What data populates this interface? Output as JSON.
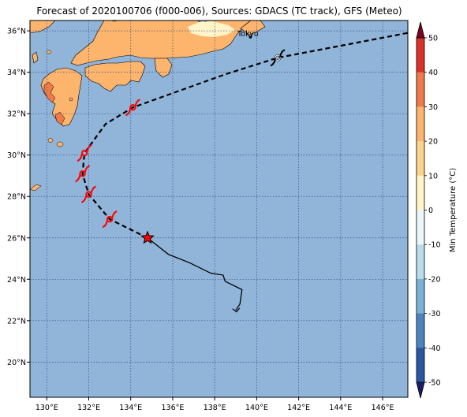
{
  "title": "Forecast of 2020100706 (f000-006), Sources: GDACS (TC track), GFS (Meteo)",
  "map": {
    "lon_range": [
      129.2,
      147.2
    ],
    "lat_range": [
      18.3,
      36.5
    ],
    "lon_ticks": [
      {
        "value": 130,
        "label": "130°E"
      },
      {
        "value": 132,
        "label": "132°E"
      },
      {
        "value": 134,
        "label": "134°E"
      },
      {
        "value": 136,
        "label": "136°E"
      },
      {
        "value": 138,
        "label": "138°E"
      },
      {
        "value": 140,
        "label": "140°E"
      },
      {
        "value": 142,
        "label": "142°E"
      },
      {
        "value": 144,
        "label": "144°E"
      },
      {
        "value": 146,
        "label": "146°E"
      }
    ],
    "lat_ticks": [
      {
        "value": 20,
        "label": "20°N"
      },
      {
        "value": 22,
        "label": "22°N"
      },
      {
        "value": 24,
        "label": "24°N"
      },
      {
        "value": 26,
        "label": "26°N"
      },
      {
        "value": 28,
        "label": "28°N"
      },
      {
        "value": 30,
        "label": "30°N"
      },
      {
        "value": 32,
        "label": "32°N"
      },
      {
        "value": 34,
        "label": "34°N"
      },
      {
        "value": 36,
        "label": "36°N"
      }
    ],
    "city_label": "Tokyo",
    "city": {
      "lon": 139.7,
      "lat": 35.7
    },
    "colors": {
      "ocean": "#91b4d9",
      "land": "#fdb46d",
      "cold_land": "#fff5c9",
      "grid": "#3a4f80"
    }
  },
  "track": {
    "past": [
      [
        139.0,
        22.5
      ],
      [
        139.2,
        22.8
      ],
      [
        139.3,
        23.5
      ],
      [
        138.5,
        23.9
      ],
      [
        138.4,
        24.2
      ],
      [
        137.8,
        24.3
      ],
      [
        136.8,
        24.8
      ],
      [
        135.8,
        25.2
      ],
      [
        134.8,
        26.0
      ]
    ],
    "current": {
      "lon": 134.8,
      "lat": 26.0
    },
    "forecast": [
      [
        134.8,
        26.0
      ],
      [
        133.0,
        26.9
      ],
      [
        132.0,
        28.1
      ],
      [
        131.7,
        29.1
      ],
      [
        131.8,
        30.1
      ],
      [
        132.8,
        31.5
      ],
      [
        134.1,
        32.3
      ],
      [
        135.2,
        32.7
      ],
      [
        138.5,
        33.9
      ],
      [
        141.0,
        34.7
      ],
      [
        147.2,
        35.9
      ]
    ],
    "storm_symbols": [
      {
        "lon": 133.0,
        "lat": 26.9,
        "color": "red"
      },
      {
        "lon": 132.0,
        "lat": 28.1,
        "color": "red"
      },
      {
        "lon": 131.7,
        "lat": 29.1,
        "color": "red"
      },
      {
        "lon": 131.8,
        "lat": 30.1,
        "color": "red"
      },
      {
        "lon": 134.1,
        "lat": 32.3,
        "color": "red"
      },
      {
        "lon": 141.0,
        "lat": 34.7,
        "color": "white"
      }
    ]
  },
  "colorbar": {
    "label": "Min Temperature (°C)",
    "min": -50,
    "max": 50,
    "step": 10,
    "ticks": [
      "-50",
      "-40",
      "-30",
      "-20",
      "-10",
      "0",
      "10",
      "20",
      "30",
      "40",
      "50"
    ],
    "colors": [
      "#2b2e85",
      "#2a56a2",
      "#4b84be",
      "#7bb3d8",
      "#b9dcec",
      "#ebf7f9",
      "#fff5c9",
      "#fdd38c",
      "#fdb46d",
      "#f07b48",
      "#d8322a",
      "#a40a2a"
    ],
    "extend_low": "#1c1c64",
    "extend_high": "#7c0322"
  }
}
